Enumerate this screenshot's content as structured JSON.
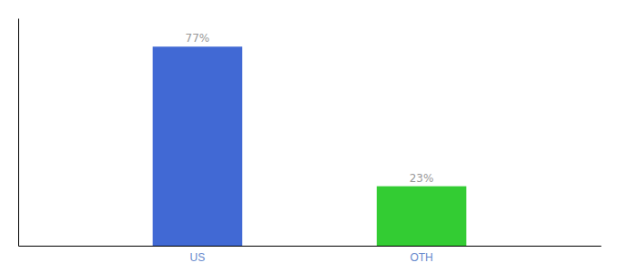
{
  "chart_data": {
    "type": "bar",
    "categories": [
      "US",
      "OTH"
    ],
    "values": [
      77,
      23
    ],
    "value_labels": [
      "77%",
      "23%"
    ],
    "data_labels": true,
    "colors": [
      "#4169d4",
      "#33cc33"
    ],
    "ylim": [
      0,
      88
    ],
    "tick_labels": "x"
  }
}
